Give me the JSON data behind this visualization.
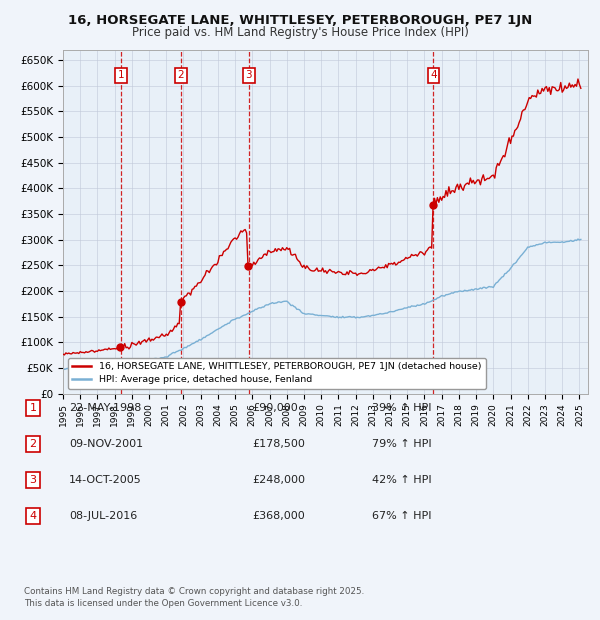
{
  "title": "16, HORSEGATE LANE, WHITTLESEY, PETERBOROUGH, PE7 1JN",
  "subtitle": "Price paid vs. HM Land Registry's House Price Index (HPI)",
  "background_color": "#f0f4fa",
  "plot_bg_color": "#e8f0f8",
  "ylim": [
    0,
    670000
  ],
  "yticks": [
    0,
    50000,
    100000,
    150000,
    200000,
    250000,
    300000,
    350000,
    400000,
    450000,
    500000,
    550000,
    600000,
    650000
  ],
  "ytick_labels": [
    "£0",
    "£50K",
    "£100K",
    "£150K",
    "£200K",
    "£250K",
    "£300K",
    "£350K",
    "£400K",
    "£450K",
    "£500K",
    "£550K",
    "£600K",
    "£650K"
  ],
  "sale_dates_float": [
    1998.37,
    2001.84,
    2005.79,
    2016.52
  ],
  "sale_prices": [
    90000,
    178500,
    248000,
    368000
  ],
  "sale_labels": [
    "1",
    "2",
    "3",
    "4"
  ],
  "sale_info": [
    {
      "label": "1",
      "date": "22-MAY-1998",
      "price": "£90,000",
      "change": "39% ↑ HPI"
    },
    {
      "label": "2",
      "date": "09-NOV-2001",
      "price": "£178,500",
      "change": "79% ↑ HPI"
    },
    {
      "label": "3",
      "date": "14-OCT-2005",
      "price": "£248,000",
      "change": "42% ↑ HPI"
    },
    {
      "label": "4",
      "date": "08-JUL-2016",
      "price": "£368,000",
      "change": "67% ↑ HPI"
    }
  ],
  "red_line_color": "#cc0000",
  "blue_line_color": "#7ab0d4",
  "legend_line1": "16, HORSEGATE LANE, WHITTLESEY, PETERBOROUGH, PE7 1JN (detached house)",
  "legend_line2": "HPI: Average price, detached house, Fenland",
  "footer1": "Contains HM Land Registry data © Crown copyright and database right 2025.",
  "footer2": "This data is licensed under the Open Government Licence v3.0.",
  "xmin": 1995,
  "xmax": 2025.5,
  "title_fontsize": 9.5,
  "subtitle_fontsize": 8.5
}
